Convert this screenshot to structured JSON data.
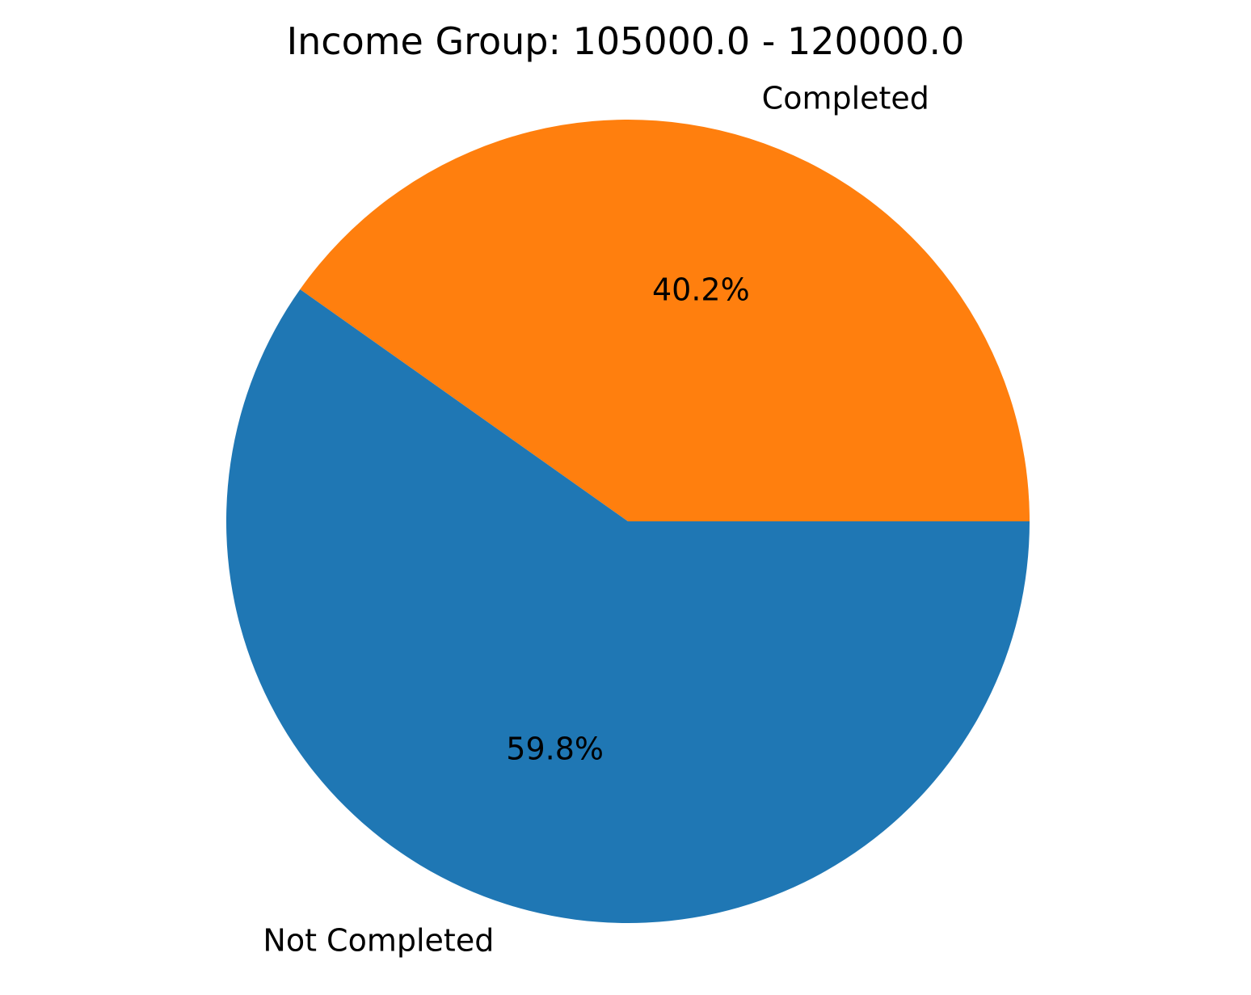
{
  "chart_data": {
    "type": "pie",
    "title": "Income Group: 105000.0 - 120000.0",
    "start_angle_deg": 0,
    "direction": "counterclockwise",
    "slices": [
      {
        "label": "Completed",
        "value": 40.2,
        "pct_label": "40.2%",
        "color": "#ff7f0e"
      },
      {
        "label": "Not Completed",
        "value": 59.8,
        "pct_label": "59.8%",
        "color": "#1f77b4"
      }
    ]
  }
}
